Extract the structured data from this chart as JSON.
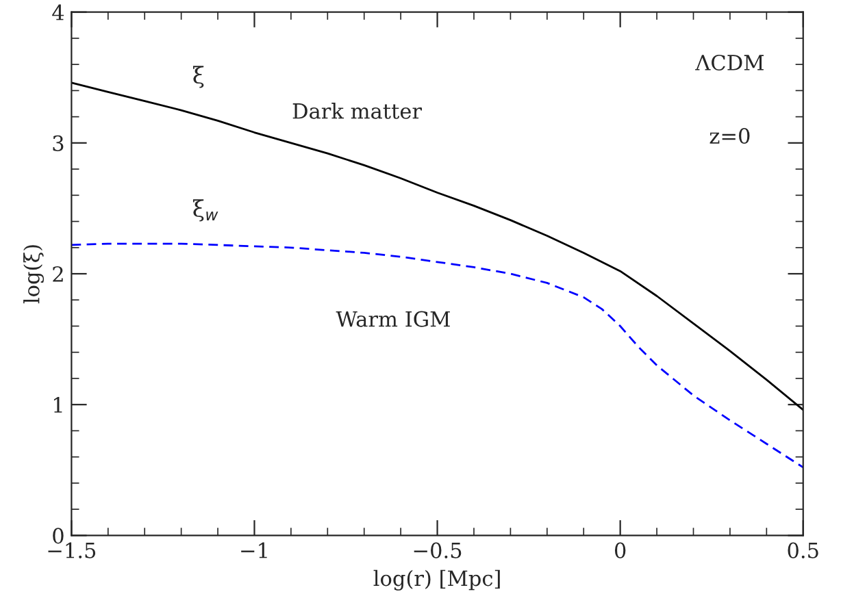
{
  "chart_data": {
    "type": "line",
    "xlabel": "log(r) [Mpc]",
    "ylabel": "log(ξ)",
    "xlim": [
      -1.5,
      0.5
    ],
    "ylim": [
      0,
      4
    ],
    "xticks": [
      {
        "value": -1.5,
        "label": "−1.5"
      },
      {
        "value": -1,
        "label": "−1"
      },
      {
        "value": -0.5,
        "label": "−0.5"
      },
      0,
      0.5
    ],
    "yticks": [
      0,
      1,
      2,
      3,
      4
    ],
    "grid": false,
    "legend": false,
    "series": [
      {
        "name": "ξ",
        "color": "#000000",
        "line_style": "solid",
        "x": [
          -1.5,
          -1.4,
          -1.3,
          -1.2,
          -1.1,
          -1.0,
          -0.9,
          -0.8,
          -0.7,
          -0.6,
          -0.5,
          -0.4,
          -0.3,
          -0.2,
          -0.1,
          0.0,
          0.1,
          0.2,
          0.3,
          0.4,
          0.5
        ],
        "values": [
          3.46,
          3.39,
          3.32,
          3.25,
          3.17,
          3.08,
          3.0,
          2.92,
          2.83,
          2.73,
          2.62,
          2.52,
          2.41,
          2.29,
          2.16,
          2.02,
          1.83,
          1.62,
          1.41,
          1.19,
          0.96
        ]
      },
      {
        "name": "ξ$_{w}$",
        "color": "#0000ff",
        "line_style": "dashed",
        "x": [
          -1.5,
          -1.4,
          -1.3,
          -1.2,
          -1.1,
          -1.0,
          -0.9,
          -0.8,
          -0.7,
          -0.6,
          -0.5,
          -0.4,
          -0.3,
          -0.2,
          -0.1,
          -0.05,
          0.0,
          0.05,
          0.1,
          0.2,
          0.3,
          0.4,
          0.5
        ],
        "values": [
          2.22,
          2.23,
          2.23,
          2.23,
          2.22,
          2.21,
          2.2,
          2.18,
          2.16,
          2.13,
          2.09,
          2.05,
          2.0,
          1.93,
          1.82,
          1.73,
          1.6,
          1.44,
          1.3,
          1.07,
          0.88,
          0.7,
          0.52
        ]
      }
    ],
    "annotations": [
      "Dark matter",
      "Warm IGM",
      "ΛCDM",
      "z=0"
    ]
  }
}
